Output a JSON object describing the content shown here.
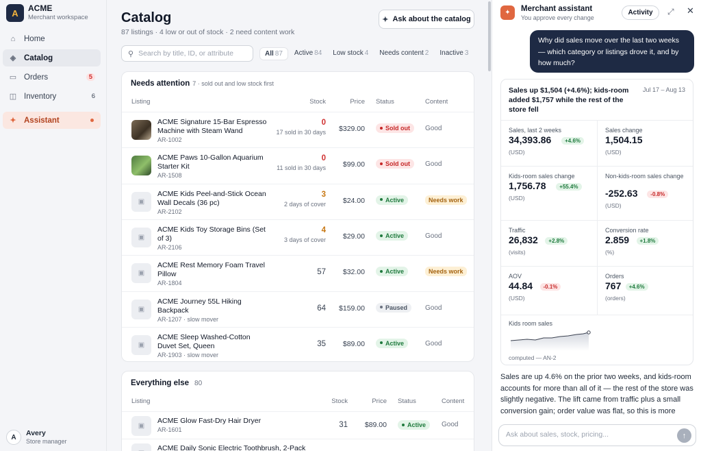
{
  "brand": {
    "letter": "A",
    "name": "ACME",
    "sub": "Merchant workspace"
  },
  "nav": [
    {
      "icon": "⌂",
      "icon_name": "home-icon",
      "label": "Home"
    },
    {
      "icon": "◈",
      "icon_name": "tag-icon",
      "label": "Catalog"
    },
    {
      "icon": "▭",
      "icon_name": "inbox-icon",
      "label": "Orders",
      "badge": "5"
    },
    {
      "icon": "◫",
      "icon_name": "box-icon",
      "label": "Inventory",
      "badge": "6"
    }
  ],
  "assistant_nav": {
    "icon": "✦",
    "label": "Assistant"
  },
  "user": {
    "initial": "A",
    "name": "Avery",
    "role": "Store manager"
  },
  "catalog": {
    "title": "Catalog",
    "subtitle": "87 listings · 4 low or out of stock · 2 need content work",
    "ask_button": "Ask about the catalog",
    "search_placeholder": "Search by title, ID, or attribute",
    "filters": [
      {
        "label": "All",
        "count": "87"
      },
      {
        "label": "Active",
        "count": "84"
      },
      {
        "label": "Low stock",
        "count": "4"
      },
      {
        "label": "Needs content",
        "count": "2"
      },
      {
        "label": "Inactive",
        "count": "3"
      }
    ]
  },
  "columns": {
    "listing": "Listing",
    "stock": "Stock",
    "price": "Price",
    "status": "Status",
    "content": "Content"
  },
  "needs_attention": {
    "title": "Needs attention",
    "note": "7 · sold out and low stock first",
    "rows": [
      {
        "name": "ACME Signature 15-Bar Espresso Machine with Steam Wand",
        "id": "AR-1002",
        "stock": "0",
        "stock_sub": "17 sold in 30 days",
        "price": "$329.00",
        "status": "Sold out",
        "content": "Good"
      },
      {
        "name": "ACME Paws 10-Gallon Aquarium Starter Kit",
        "id": "AR-1508",
        "stock": "0",
        "stock_sub": "11 sold in 30 days",
        "price": "$99.00",
        "status": "Sold out",
        "content": "Good"
      },
      {
        "name": "ACME Kids Peel-and-Stick Ocean Wall Decals (36 pc)",
        "id": "AR-2102",
        "stock": "3",
        "stock_sub": "2 days of cover",
        "price": "$24.00",
        "status": "Active",
        "content": "Needs work"
      },
      {
        "name": "ACME Kids Toy Storage Bins (Set of 3)",
        "id": "AR-2106",
        "stock": "4",
        "stock_sub": "3 days of cover",
        "price": "$29.00",
        "status": "Active",
        "content": "Good"
      },
      {
        "name": "ACME Rest Memory Foam Travel Pillow",
        "id": "AR-1804",
        "stock": "57",
        "stock_sub": "",
        "price": "$32.00",
        "status": "Active",
        "content": "Needs work"
      },
      {
        "name": "ACME Journey 55L Hiking Backpack",
        "id": "AR-1207 · slow mover",
        "stock": "64",
        "stock_sub": "",
        "price": "$159.00",
        "status": "Paused",
        "content": "Good"
      },
      {
        "name": "ACME Sleep Washed-Cotton Duvet Set, Queen",
        "id": "AR-1903 · slow mover",
        "stock": "35",
        "stock_sub": "",
        "price": "$89.00",
        "status": "Active",
        "content": "Good"
      }
    ]
  },
  "everything_else": {
    "title": "Everything else",
    "count": "80",
    "rows": [
      {
        "name": "ACME Glow Fast-Dry Hair Dryer",
        "id": "AR-1601",
        "stock": "31",
        "price": "$89.00",
        "status": "Active",
        "content": "Good"
      },
      {
        "name": "ACME Daily Sonic Electric Toothbrush, 2-Pack",
        "id": "",
        "stock": "",
        "price": "",
        "status": "",
        "content": ""
      }
    ]
  },
  "assistant": {
    "title": "Merchant assistant",
    "subtitle": "You approve every change",
    "activity": "Activity",
    "question": "Why did sales move over the last two weeks — which category or listings drove it, and by how much?",
    "result": {
      "title": "Sales up $1,504 (+4.6%); kids-room added $1,757 while the rest of the store fell",
      "date": "Jul 17 – Aug 13",
      "metrics": [
        {
          "label": "Sales, last 2 weeks",
          "value": "34,393.86",
          "chip": "+4.6%",
          "unit": "(USD)"
        },
        {
          "label": "Sales change",
          "value": "1,504.15",
          "chip": "",
          "unit": "(USD)"
        },
        {
          "label": "Kids-room sales change",
          "value": "1,756.78",
          "chip": "+55.4%",
          "unit": "(USD)"
        },
        {
          "label": "Non-kids-room sales change",
          "value": "-252.63",
          "chip": "-0.8%",
          "unit": "(USD)"
        },
        {
          "label": "Traffic",
          "value": "26,832",
          "chip": "+2.8%",
          "unit": "(visits)"
        },
        {
          "label": "Conversion rate",
          "value": "2.859",
          "chip": "+1.8%",
          "unit": "(%)"
        },
        {
          "label": "AOV",
          "value": "44.84",
          "chip": "-0.1%",
          "unit": "(USD)"
        },
        {
          "label": "Orders",
          "value": "767",
          "chip": "+4.6%",
          "unit": "(orders)"
        }
      ],
      "spark_label": "Kids room sales",
      "spark_note": "computed — AN-2"
    },
    "answer": "Sales are up 4.6% on the prior two weeks, and kids-room accounts for more than all of it — the rest of the store was slightly negative. The lift came from traffic plus a small conversion gain; order value was flat, so this is more",
    "composer_placeholder": "Ask about sales, stock, pricing..."
  }
}
